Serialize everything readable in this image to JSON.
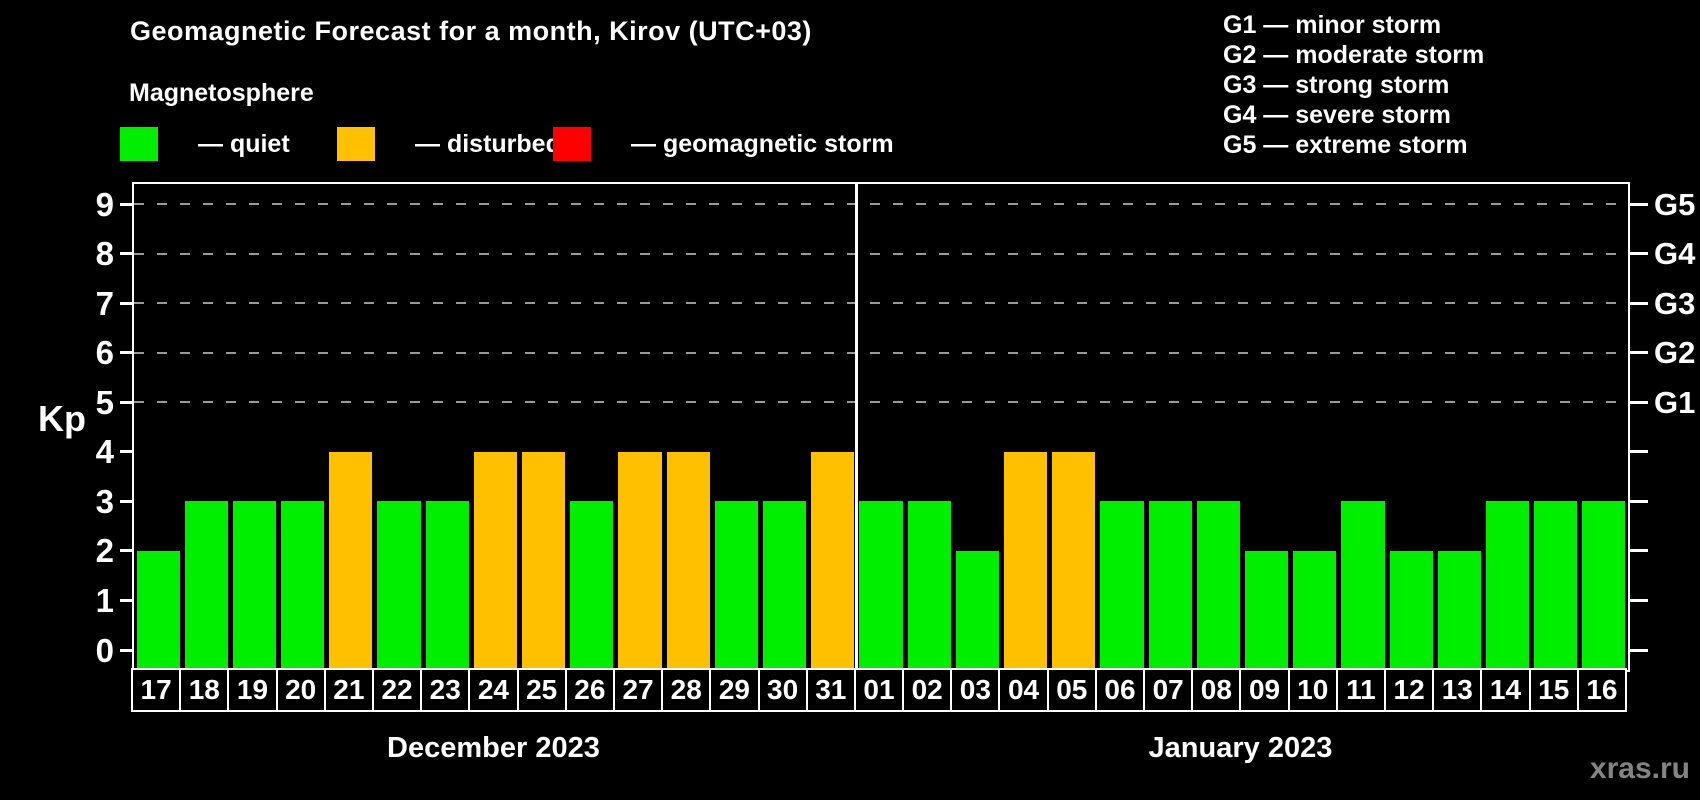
{
  "title": "Geomagnetic Forecast for a month, Kirov (UTC+03)",
  "subtitle": "Magnetosphere",
  "legend": {
    "items": [
      {
        "key": "quiet",
        "label": "— quiet",
        "color": "#00ee00"
      },
      {
        "key": "disturbed",
        "label": "— disturbed",
        "color": "#ffc000"
      },
      {
        "key": "storm",
        "label": "— geomagnetic storm",
        "color": "#ff0000"
      }
    ]
  },
  "g_scale_legend": {
    "lines": [
      "G1 — minor storm",
      "G2 — moderate storm",
      "G3 — strong storm",
      "G4 — severe storm",
      "G5 — extreme storm"
    ]
  },
  "watermark": "xras.ru",
  "chart_data": {
    "type": "bar",
    "ylabel": "Kp",
    "ylim": [
      0,
      9
    ],
    "yticks": [
      0,
      1,
      2,
      3,
      4,
      5,
      6,
      7,
      8,
      9
    ],
    "grid_levels": [
      5,
      6,
      7,
      8,
      9
    ],
    "grid_on": true,
    "right_axis_labels": [
      {
        "level": 5,
        "label": "G1"
      },
      {
        "level": 6,
        "label": "G2"
      },
      {
        "level": 7,
        "label": "G3"
      },
      {
        "level": 8,
        "label": "G4"
      },
      {
        "level": 9,
        "label": "G5"
      }
    ],
    "status_colors": {
      "quiet": "#00ee00",
      "disturbed": "#ffc000",
      "storm": "#ff0000"
    },
    "groups": [
      {
        "label": "December 2023",
        "categories": [
          "17",
          "18",
          "19",
          "20",
          "21",
          "22",
          "23",
          "24",
          "25",
          "26",
          "27",
          "28",
          "29",
          "30",
          "31"
        ],
        "values": [
          2,
          3,
          3,
          3,
          4,
          3,
          3,
          4,
          4,
          3,
          4,
          4,
          3,
          3,
          4
        ],
        "statuses": [
          "quiet",
          "quiet",
          "quiet",
          "quiet",
          "disturbed",
          "quiet",
          "quiet",
          "disturbed",
          "disturbed",
          "quiet",
          "disturbed",
          "disturbed",
          "quiet",
          "quiet",
          "disturbed"
        ]
      },
      {
        "label": "January 2023",
        "categories": [
          "01",
          "02",
          "03",
          "04",
          "05",
          "06",
          "07",
          "08",
          "09",
          "10",
          "11",
          "12",
          "13",
          "14",
          "15",
          "16"
        ],
        "values": [
          3,
          3,
          2,
          4,
          4,
          3,
          3,
          3,
          2,
          2,
          3,
          2,
          2,
          3,
          3,
          3
        ],
        "statuses": [
          "quiet",
          "quiet",
          "quiet",
          "disturbed",
          "disturbed",
          "quiet",
          "quiet",
          "quiet",
          "quiet",
          "quiet",
          "quiet",
          "quiet",
          "quiet",
          "quiet",
          "quiet",
          "quiet"
        ]
      }
    ]
  }
}
